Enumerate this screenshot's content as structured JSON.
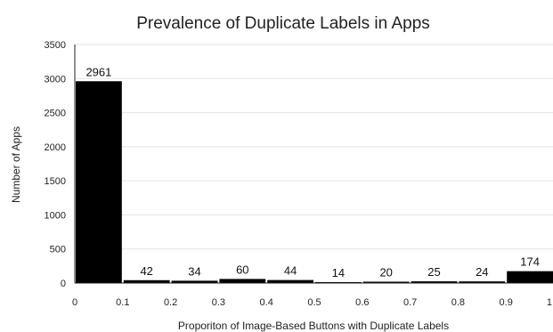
{
  "chart_data": {
    "type": "bar",
    "title": "Prevalence of Duplicate Labels in Apps",
    "xlabel": "Proporiton of Image-Based Buttons with Duplicate Labels",
    "ylabel": "Number of Apps",
    "ylim": [
      0,
      3500
    ],
    "y_ticks": [
      "0",
      "500",
      "1000",
      "1500",
      "2000",
      "2500",
      "3000",
      "3500"
    ],
    "x_ticks": [
      "0",
      "0.1",
      "0.2",
      "0.3",
      "0.4",
      "0.5",
      "0.6",
      "0.7",
      "0.8",
      "0.9",
      "1"
    ],
    "bins": [
      [
        0,
        0.1
      ],
      [
        0.1,
        0.2
      ],
      [
        0.2,
        0.3
      ],
      [
        0.3,
        0.4
      ],
      [
        0.4,
        0.5
      ],
      [
        0.5,
        0.6
      ],
      [
        0.6,
        0.7
      ],
      [
        0.7,
        0.8
      ],
      [
        0.8,
        0.9
      ],
      [
        0.9,
        1.0
      ]
    ],
    "values": [
      2961,
      42,
      34,
      60,
      44,
      14,
      20,
      25,
      24,
      174
    ],
    "data_labels": [
      "2961",
      "42",
      "34",
      "60",
      "44",
      "14",
      "20",
      "25",
      "24",
      "174"
    ],
    "grid": true,
    "bar_color": "#000000",
    "grid_color": "#e3e3e3",
    "axis_color": "#222222"
  }
}
